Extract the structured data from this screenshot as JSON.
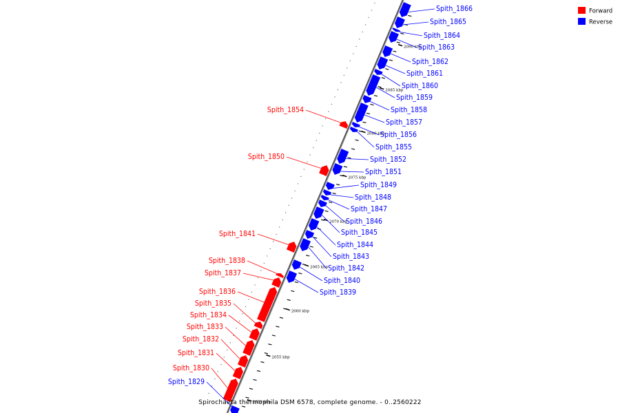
{
  "caption": "Spirochaeta thermophila DSM 6578, complete genome. - 0..2560222",
  "legend": [
    {
      "label": "Forward",
      "color": "#ff0000"
    },
    {
      "label": "Reverse",
      "color": "#0000ff"
    }
  ],
  "colors": {
    "forward": "#ff0000",
    "reverse": "#0000ff",
    "axis": "#555555"
  },
  "ticks": [
    "2050 kbp",
    "2055 kbp",
    "2060 kbp",
    "2065 kbp",
    "2070 kbp",
    "2075 kbp",
    "2080 kbp",
    "2085 kbp",
    "2090 kbp"
  ],
  "genes": [
    {
      "name": "Spith_1829",
      "strand": "reverse"
    },
    {
      "name": "Spith_1830",
      "strand": "forward"
    },
    {
      "name": "Spith_1831",
      "strand": "forward"
    },
    {
      "name": "Spith_1832",
      "strand": "forward"
    },
    {
      "name": "Spith_1833",
      "strand": "forward"
    },
    {
      "name": "Spith_1834",
      "strand": "forward"
    },
    {
      "name": "Spith_1835",
      "strand": "forward"
    },
    {
      "name": "Spith_1836",
      "strand": "forward"
    },
    {
      "name": "Spith_1837",
      "strand": "forward"
    },
    {
      "name": "Spith_1838",
      "strand": "forward"
    },
    {
      "name": "Spith_1839",
      "strand": "reverse"
    },
    {
      "name": "Spith_1840",
      "strand": "reverse"
    },
    {
      "name": "Spith_1841",
      "strand": "forward"
    },
    {
      "name": "Spith_1842",
      "strand": "reverse"
    },
    {
      "name": "Spith_1843",
      "strand": "reverse"
    },
    {
      "name": "Spith_1844",
      "strand": "reverse"
    },
    {
      "name": "Spith_1845",
      "strand": "reverse"
    },
    {
      "name": "Spith_1846",
      "strand": "reverse"
    },
    {
      "name": "Spith_1847",
      "strand": "reverse"
    },
    {
      "name": "Spith_1848",
      "strand": "reverse"
    },
    {
      "name": "Spith_1849",
      "strand": "reverse"
    },
    {
      "name": "Spith_1850",
      "strand": "forward"
    },
    {
      "name": "Spith_1851",
      "strand": "reverse"
    },
    {
      "name": "Spith_1852",
      "strand": "reverse"
    },
    {
      "name": "Spith_1854",
      "strand": "forward"
    },
    {
      "name": "Spith_1855",
      "strand": "reverse"
    },
    {
      "name": "Spith_1856",
      "strand": "reverse"
    },
    {
      "name": "Spith_1857",
      "strand": "reverse"
    },
    {
      "name": "Spith_1858",
      "strand": "reverse"
    },
    {
      "name": "Spith_1859",
      "strand": "reverse"
    },
    {
      "name": "Spith_1860",
      "strand": "reverse"
    },
    {
      "name": "Spith_1861",
      "strand": "reverse"
    },
    {
      "name": "Spith_1862",
      "strand": "reverse"
    },
    {
      "name": "Spith_1863",
      "strand": "reverse"
    },
    {
      "name": "Spith_1864",
      "strand": "reverse"
    },
    {
      "name": "Spith_1865",
      "strand": "reverse"
    },
    {
      "name": "Spith_1866",
      "strand": "reverse"
    }
  ]
}
